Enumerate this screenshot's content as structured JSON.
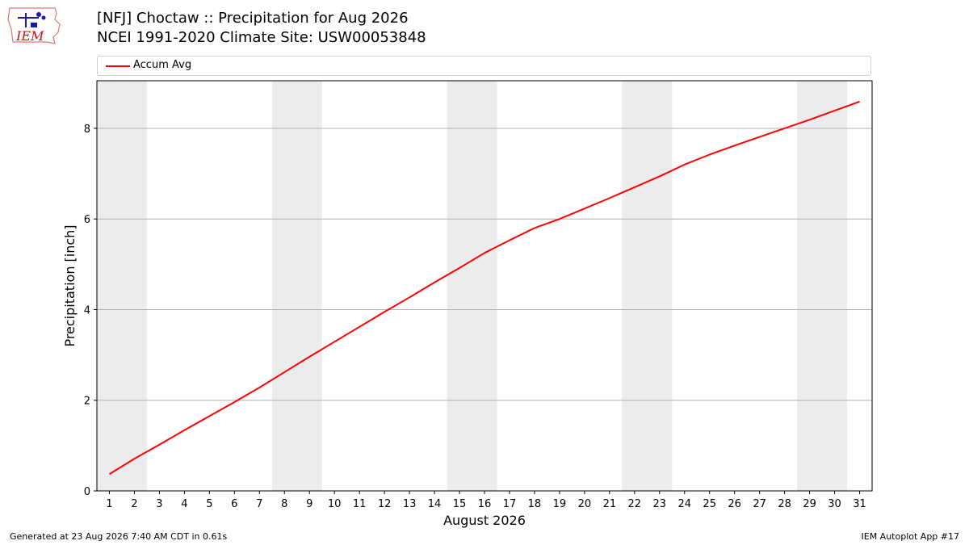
{
  "header": {
    "logo_text": "IEM",
    "title_line1": "[NFJ] Choctaw :: Precipitation for Aug 2026",
    "title_line2": "NCEI 1991-2020 Climate Site: USW00053848"
  },
  "footer": {
    "left": "Generated at 23 Aug 2026 7:40 AM CDT in 0.61s",
    "right": "IEM Autoplot App #17"
  },
  "colors": {
    "series": "#ff0000",
    "weekend_band": "#ececec",
    "grid": "#b0b0b0"
  },
  "chart_data": {
    "type": "line",
    "title": "[NFJ] Choctaw :: Precipitation for Aug 2026",
    "subtitle": "NCEI 1991-2020 Climate Site: USW00053848",
    "xlabel": "August 2026",
    "ylabel": "Precipitation [inch]",
    "xlim": [
      0.5,
      31.5
    ],
    "ylim": [
      0,
      9.05
    ],
    "yticks": [
      0,
      2,
      4,
      6,
      8
    ],
    "grid": "horizontal",
    "legend_position": "top",
    "x": [
      1,
      2,
      3,
      4,
      5,
      6,
      7,
      8,
      9,
      10,
      11,
      12,
      13,
      14,
      15,
      16,
      17,
      18,
      19,
      20,
      21,
      22,
      23,
      24,
      25,
      26,
      27,
      28,
      29,
      30,
      31
    ],
    "shaded_day_ranges": [
      [
        1,
        2
      ],
      [
        8,
        9
      ],
      [
        15,
        16
      ],
      [
        22,
        23
      ],
      [
        29,
        30
      ]
    ],
    "series": [
      {
        "name": "Accum Avg",
        "color": "#ff0000",
        "values": [
          0.37,
          0.71,
          1.02,
          1.34,
          1.65,
          1.96,
          2.28,
          2.62,
          2.96,
          3.29,
          3.62,
          3.95,
          4.27,
          4.6,
          4.92,
          5.25,
          5.53,
          5.8,
          6.0,
          6.23,
          6.46,
          6.7,
          6.94,
          7.2,
          7.42,
          7.62,
          7.81,
          8.0,
          8.19,
          8.39,
          8.59
        ]
      }
    ]
  }
}
